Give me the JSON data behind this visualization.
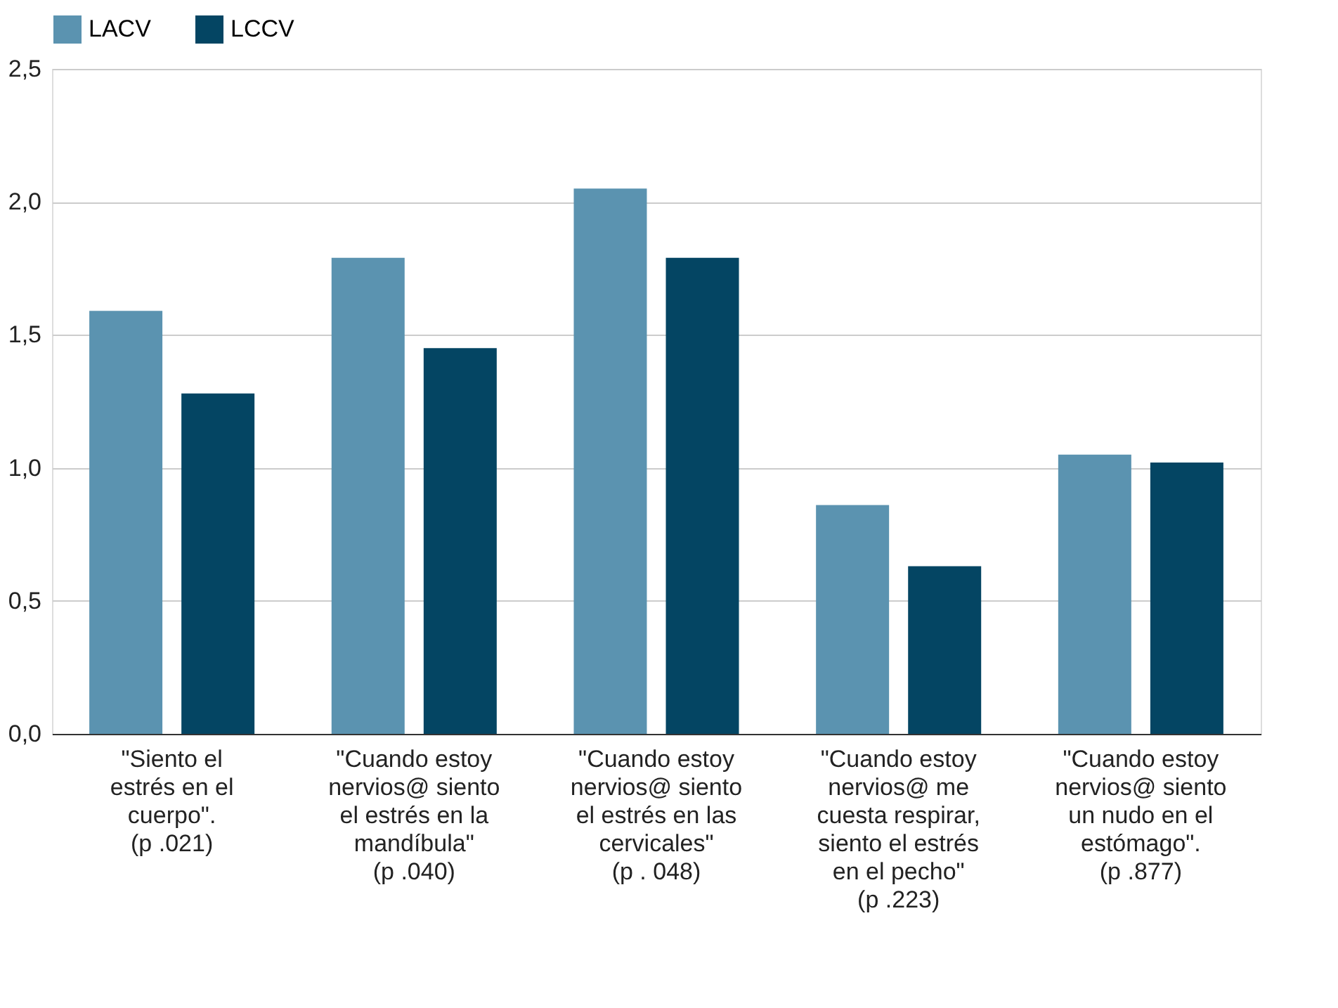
{
  "chart_data": {
    "type": "bar",
    "categories": [
      "\"Siento el\nestrés en el\ncuerpo\".\n(p .021)",
      "\"Cuando estoy\nnervios@ siento\nel estrés en la\nmandíbula\"\n(p .040)",
      "\"Cuando estoy\nnervios@ siento\nel estrés en las\ncervicales\"\n(p . 048)",
      "\"Cuando estoy\nnervios@ me\ncuesta respirar,\nsiento el estrés\nen el pecho\"\n(p .223)",
      "\"Cuando estoy\nnervios@ siento\nun nudo en el\nestómago\".\n(p .877)"
    ],
    "series": [
      {
        "name": "LACV",
        "color": "#5b93b0",
        "values": [
          1.59,
          1.79,
          2.05,
          0.86,
          1.05
        ]
      },
      {
        "name": "LCCV",
        "color": "#044563",
        "values": [
          1.28,
          1.45,
          1.79,
          0.63,
          1.02
        ]
      }
    ],
    "ylim": [
      0,
      2.5
    ],
    "yticks": [
      {
        "value": 0,
        "label": "0,0"
      },
      {
        "value": 0.5,
        "label": "0,5"
      },
      {
        "value": 1,
        "label": "1,0"
      },
      {
        "value": 1.5,
        "label": "1,5"
      },
      {
        "value": 2,
        "label": "2,0"
      },
      {
        "value": 2.5,
        "label": "2,5"
      }
    ],
    "grid": "y",
    "legend": "top"
  }
}
